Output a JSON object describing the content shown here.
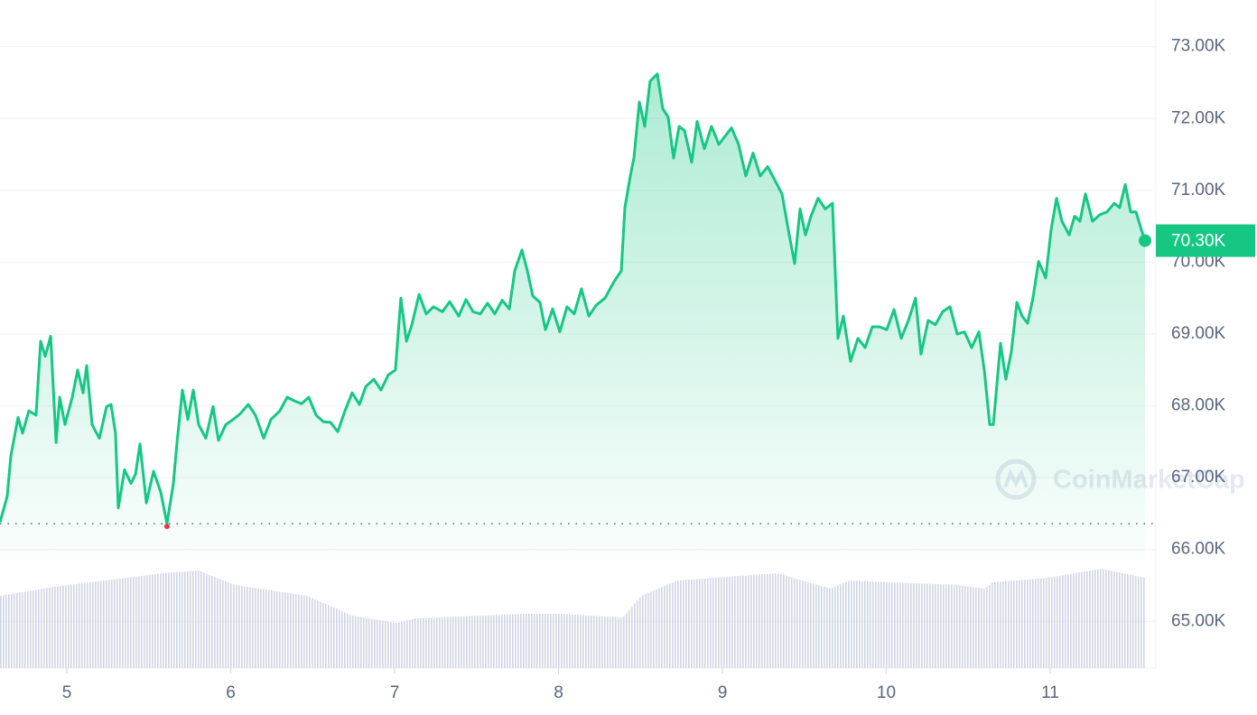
{
  "chart_data": {
    "type": "line",
    "x": [
      4.592,
      4.636,
      4.658,
      4.702,
      4.73,
      4.768,
      4.812,
      4.84,
      4.868,
      4.901,
      4.934,
      4.956,
      4.989,
      5.033,
      5.066,
      5.099,
      5.121,
      5.154,
      5.198,
      5.242,
      5.27,
      5.297,
      5.314,
      5.352,
      5.391,
      5.419,
      5.446,
      5.485,
      5.529,
      5.573,
      5.611,
      5.65,
      5.672,
      5.705,
      5.738,
      5.771,
      5.804,
      5.848,
      5.892,
      5.925,
      5.97,
      6.014,
      6.058,
      6.107,
      6.151,
      6.201,
      6.245,
      6.3,
      6.344,
      6.388,
      6.432,
      6.476,
      6.521,
      6.565,
      6.609,
      6.653,
      6.697,
      6.741,
      6.785,
      6.824,
      6.873,
      6.917,
      6.961,
      7.005,
      7.038,
      7.072,
      7.105,
      7.149,
      7.193,
      7.237,
      7.292,
      7.336,
      7.391,
      7.435,
      7.479,
      7.523,
      7.567,
      7.611,
      7.656,
      7.7,
      7.733,
      7.777,
      7.81,
      7.843,
      7.887,
      7.92,
      7.964,
      8.008,
      8.052,
      8.096,
      8.14,
      8.185,
      8.229,
      8.284,
      8.339,
      8.383,
      8.405,
      8.438,
      8.46,
      8.493,
      8.526,
      8.559,
      8.603,
      8.636,
      8.669,
      8.702,
      8.736,
      8.769,
      8.813,
      8.846,
      8.89,
      8.934,
      8.978,
      9.022,
      9.055,
      9.099,
      9.143,
      9.187,
      9.231,
      9.276,
      9.32,
      9.364,
      9.408,
      9.441,
      9.474,
      9.507,
      9.54,
      9.584,
      9.628,
      9.672,
      9.705,
      9.738,
      9.782,
      9.827,
      9.871,
      9.915,
      9.959,
      10.003,
      10.047,
      10.091,
      10.135,
      10.179,
      10.212,
      10.256,
      10.3,
      10.344,
      10.389,
      10.433,
      10.477,
      10.521,
      10.565,
      10.598,
      10.631,
      10.653,
      10.697,
      10.73,
      10.763,
      10.797,
      10.829,
      10.862,
      10.895,
      10.929,
      10.973,
      11.006,
      11.039,
      11.072,
      11.116,
      11.149,
      11.182,
      11.215,
      11.259,
      11.303,
      11.347,
      11.391,
      11.424,
      11.458,
      11.491,
      11.524,
      11.557,
      11.579
    ],
    "series": [
      {
        "color": "#16c784",
        "values": [
          66380,
          66740,
          67300,
          67840,
          67620,
          67930,
          67870,
          68900,
          68690,
          68970,
          67490,
          68120,
          67740,
          68120,
          68500,
          68180,
          68560,
          67740,
          67550,
          67990,
          68020,
          67620,
          66580,
          67110,
          66920,
          67050,
          67470,
          66650,
          67090,
          66800,
          66360,
          66920,
          67490,
          68220,
          67810,
          68220,
          67740,
          67550,
          67990,
          67520,
          67740,
          67810,
          67890,
          68020,
          67870,
          67550,
          67810,
          67930,
          68120,
          68070,
          68030,
          68120,
          67870,
          67780,
          67770,
          67640,
          67930,
          68180,
          68020,
          68270,
          68370,
          68220,
          68430,
          68500,
          69500,
          68900,
          69130,
          69550,
          69280,
          69380,
          69310,
          69450,
          69250,
          69480,
          69310,
          69280,
          69430,
          69280,
          69470,
          69350,
          69880,
          70170,
          69880,
          69530,
          69440,
          69060,
          69350,
          69030,
          69380,
          69280,
          69630,
          69250,
          69400,
          69500,
          69730,
          69880,
          70760,
          71200,
          71450,
          72230,
          71890,
          72520,
          72620,
          72140,
          72020,
          71450,
          71890,
          71830,
          71390,
          71960,
          71580,
          71890,
          71640,
          71770,
          71870,
          71640,
          71200,
          71520,
          71200,
          71330,
          71140,
          70950,
          70380,
          69980,
          70740,
          70380,
          70640,
          70890,
          70740,
          70820,
          68940,
          69250,
          68620,
          68940,
          68810,
          69100,
          69100,
          69060,
          69340,
          68940,
          69190,
          69500,
          68720,
          69190,
          69130,
          69310,
          69380,
          69000,
          69030,
          68810,
          69030,
          68500,
          67740,
          67740,
          68870,
          68370,
          68750,
          69440,
          69250,
          69150,
          69500,
          70010,
          69780,
          70450,
          70890,
          70570,
          70380,
          70640,
          70570,
          70950,
          70570,
          70660,
          70700,
          70820,
          70760,
          71080,
          70700,
          70700,
          70450,
          70300
        ]
      }
    ],
    "current_price": {
      "value": 70300,
      "label": "70.30K"
    },
    "volume": {
      "x": [
        4.592,
        4.923,
        5.584,
        5.804,
        6.025,
        6.465,
        6.741,
        7.016,
        7.127,
        7.788,
        8.008,
        8.394,
        8.504,
        8.725,
        9.331,
        9.661,
        9.771,
        10.433,
        10.598,
        10.653,
        10.984,
        11.314,
        11.579
      ],
      "values": [
        80,
        90,
        105,
        108,
        92,
        80,
        58,
        50,
        55,
        60,
        60,
        56,
        80,
        97,
        105,
        88,
        97,
        92,
        88,
        95,
        100,
        110,
        100
      ],
      "color": "#cfd6e4"
    },
    "xlim": [
      4.592,
      11.645
    ],
    "xticks": [
      5,
      6,
      7,
      8,
      9,
      10,
      11
    ],
    "ylim": [
      64350,
      73650
    ],
    "yticks": [
      {
        "value": 65000,
        "label": "65.00K"
      },
      {
        "value": 66000,
        "label": "66.00K"
      },
      {
        "value": 67000,
        "label": "67.00K"
      },
      {
        "value": 68000,
        "label": "68.00K"
      },
      {
        "value": 69000,
        "label": "69.00K"
      },
      {
        "value": 70000,
        "label": "70.00K"
      },
      {
        "value": 71000,
        "label": "71.00K"
      },
      {
        "value": 72000,
        "label": "72.00K"
      },
      {
        "value": 73000,
        "label": "73.00K"
      }
    ],
    "grid": true,
    "watermark": "CoinMarketCap"
  }
}
